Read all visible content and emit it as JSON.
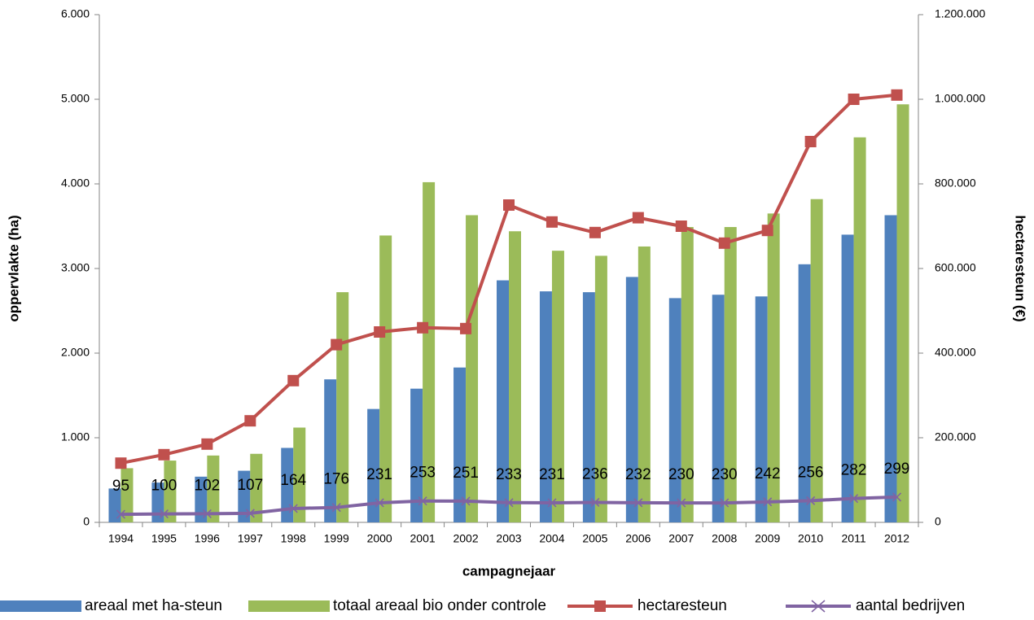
{
  "chart_data": {
    "type": "combo",
    "x_label": "campagnejaar",
    "y_label": "oppervlakte (ha)",
    "y2_label": "hectaresteun (€)",
    "categories": [
      "1994",
      "1995",
      "1996",
      "1997",
      "1998",
      "1999",
      "2000",
      "2001",
      "2002",
      "2003",
      "2004",
      "2005",
      "2006",
      "2007",
      "2008",
      "2009",
      "2010",
      "2011",
      "2012"
    ],
    "ylim": [
      0,
      6000
    ],
    "yticks": [
      0,
      {
        "value": 1000,
        "label": "1.000"
      },
      {
        "value": 2000,
        "label": "2.000"
      },
      {
        "value": 3000,
        "label": "3.000"
      },
      {
        "value": 4000,
        "label": "4.000"
      },
      {
        "value": 5000,
        "label": "5.000"
      },
      {
        "value": 6000,
        "label": "6.000"
      }
    ],
    "y2lim": [
      0,
      1200000
    ],
    "y2ticks": [
      0,
      {
        "value": 200000,
        "label": "200.000"
      },
      {
        "value": 400000,
        "label": "400.000"
      },
      {
        "value": 600000,
        "label": "600.000"
      },
      {
        "value": 800000,
        "label": "800.000"
      },
      {
        "value": 1000000,
        "label": "1.000.000"
      },
      {
        "value": 1200000,
        "label": "1.200.000"
      }
    ],
    "legend": "bottom",
    "series": [
      {
        "name": "areaal met ha-steun",
        "type": "bar",
        "color": "#4f81bd",
        "values": [
          400,
          470,
          540,
          610,
          880,
          1690,
          1340,
          1580,
          1830,
          2860,
          2730,
          2720,
          2900,
          2650,
          2690,
          2670,
          3050,
          3400,
          3630
        ]
      },
      {
        "name": "totaal areaal bio onder controle",
        "type": "bar",
        "color": "#9bbb59",
        "values": [
          640,
          730,
          790,
          810,
          1120,
          2720,
          3390,
          4020,
          3630,
          3440,
          3210,
          3150,
          3260,
          3490,
          3490,
          3650,
          3820,
          4550,
          4940
        ]
      },
      {
        "name": "hectaresteun",
        "type": "line",
        "axis": "y2",
        "color": "#c0504d",
        "marker": "square",
        "values": [
          140000,
          160000,
          185000,
          240000,
          335000,
          420000,
          450000,
          460000,
          458000,
          750000,
          710000,
          685000,
          720000,
          700000,
          660000,
          690000,
          900000,
          1000000,
          1010000
        ]
      },
      {
        "name": "aantal bedrijven",
        "type": "line",
        "color": "#8064a2",
        "marker": "x",
        "data_labels": true,
        "values": [
          95,
          100,
          102,
          107,
          164,
          176,
          231,
          253,
          251,
          233,
          231,
          236,
          232,
          230,
          230,
          242,
          256,
          282,
          299
        ]
      }
    ]
  }
}
